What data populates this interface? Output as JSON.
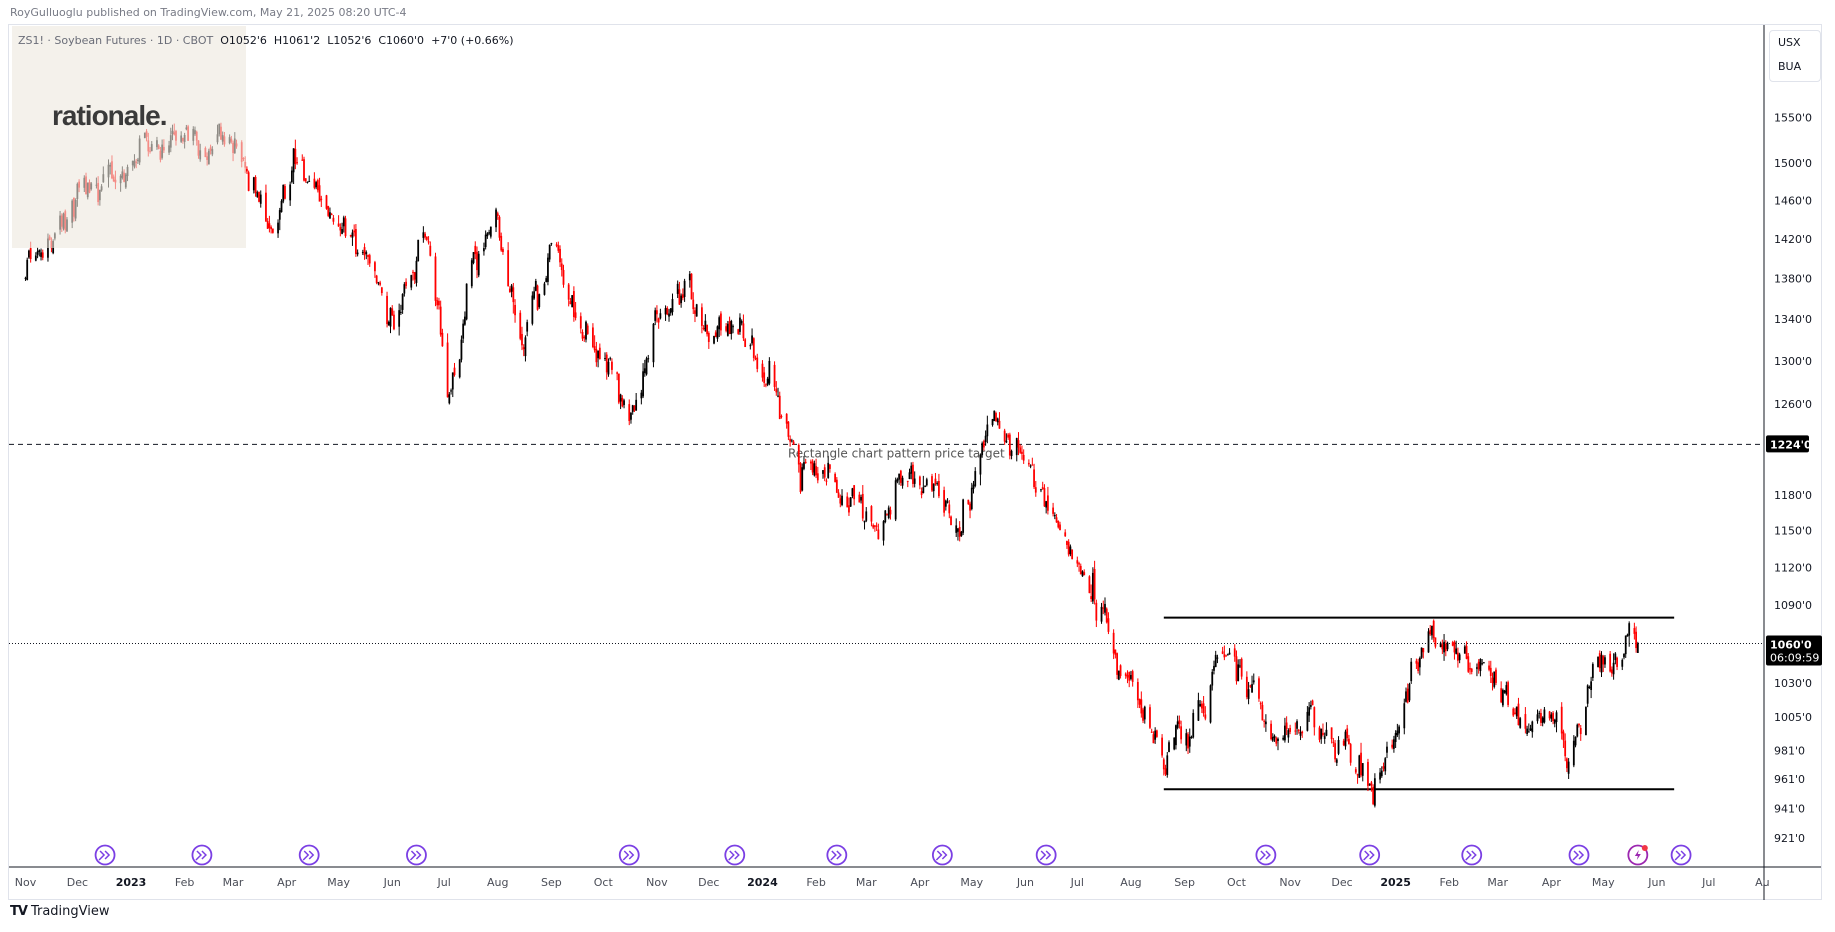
{
  "header": {
    "published": "RoyGulluoglu published on TradingView.com, May 21, 2025 08:20 UTC-4"
  },
  "legend": {
    "symbol": "ZS1! · Soybean Futures · 1D · CBOT",
    "open": "O1052'6",
    "high": "H1061'2",
    "low": "L1052'6",
    "close": "C1060'0",
    "change": "+7'0 (+0.66%)"
  },
  "logo": {
    "text": "rationale."
  },
  "units": {
    "line1": "USX",
    "line2": "BUA"
  },
  "footer": {
    "brand": "TradingView",
    "mark": "TV"
  },
  "colors": {
    "up": "#000000",
    "down": "#ff0000",
    "event": "#7b3fe4",
    "axis": "#787b86"
  },
  "chart_data": {
    "type": "candlestick",
    "title": "ZS1! Soybean Futures 1D CBOT",
    "scale": "log",
    "ylim": [
      905,
      1600
    ],
    "xlim": [
      "2022-10-27",
      "2025-08-05"
    ],
    "path": [
      [
        "2022-11-01",
        1390
      ],
      [
        "2022-11-20",
        1430
      ],
      [
        "2022-12-10",
        1460
      ],
      [
        "2023-01-01",
        1500
      ],
      [
        "2023-01-20",
        1520
      ],
      [
        "2023-02-10",
        1540
      ],
      [
        "2023-03-01",
        1510
      ],
      [
        "2023-03-15",
        1470
      ],
      [
        "2023-03-22",
        1420
      ],
      [
        "2023-04-05",
        1510
      ],
      [
        "2023-04-18",
        1480
      ],
      [
        "2023-05-01",
        1436
      ],
      [
        "2023-05-15",
        1420
      ],
      [
        "2023-06-01",
        1323
      ],
      [
        "2023-06-20",
        1425
      ],
      [
        "2023-07-03",
        1270
      ],
      [
        "2023-07-17",
        1377
      ],
      [
        "2023-08-01",
        1429
      ],
      [
        "2023-08-15",
        1323
      ],
      [
        "2023-09-01",
        1408
      ],
      [
        "2023-09-20",
        1330
      ],
      [
        "2023-10-15",
        1262
      ],
      [
        "2023-11-01",
        1323
      ],
      [
        "2023-11-20",
        1384
      ],
      [
        "2023-12-01",
        1334
      ],
      [
        "2023-12-20",
        1328
      ],
      [
        "2024-01-05",
        1274
      ],
      [
        "2024-01-25",
        1208
      ],
      [
        "2024-02-20",
        1178
      ],
      [
        "2024-03-05",
        1142
      ],
      [
        "2024-03-20",
        1203
      ],
      [
        "2024-04-10",
        1178
      ],
      [
        "2024-04-25",
        1157
      ],
      [
        "2024-05-12",
        1243
      ],
      [
        "2024-05-25",
        1233
      ],
      [
        "2024-06-10",
        1178
      ],
      [
        "2024-06-25",
        1142
      ],
      [
        "2024-07-10",
        1104
      ],
      [
        "2024-07-25",
        1050
      ],
      [
        "2024-08-10",
        1013
      ],
      [
        "2024-08-20",
        965
      ],
      [
        "2024-09-05",
        1005
      ],
      [
        "2024-09-25",
        1062
      ],
      [
        "2024-10-15",
        1005
      ],
      [
        "2024-11-01",
        995
      ],
      [
        "2024-11-15",
        1013
      ],
      [
        "2024-12-01",
        990
      ],
      [
        "2024-12-20",
        957
      ],
      [
        "2025-01-05",
        1000
      ],
      [
        "2025-01-20",
        1065
      ],
      [
        "2025-02-05",
        1050
      ],
      [
        "2025-02-25",
        1040
      ],
      [
        "2025-03-15",
        1003
      ],
      [
        "2025-04-01",
        1013
      ],
      [
        "2025-04-10",
        974
      ],
      [
        "2025-04-25",
        1035
      ],
      [
        "2025-05-10",
        1043
      ],
      [
        "2025-05-15",
        1072
      ],
      [
        "2025-05-21",
        1060
      ]
    ],
    "last_candle": {
      "date": "2025-05-21",
      "open": 1052.75,
      "high": 1061.25,
      "low": 1052.75,
      "close": 1060
    },
    "price_ticks": [
      {
        "value": 1550,
        "label": "1550'0"
      },
      {
        "value": 1500,
        "label": "1500'0"
      },
      {
        "value": 1460,
        "label": "1460'0"
      },
      {
        "value": 1420,
        "label": "1420'0"
      },
      {
        "value": 1380,
        "label": "1380'0"
      },
      {
        "value": 1340,
        "label": "1340'0"
      },
      {
        "value": 1300,
        "label": "1300'0"
      },
      {
        "value": 1260,
        "label": "1260'0"
      },
      {
        "value": 1180,
        "label": "1180'0"
      },
      {
        "value": 1150,
        "label": "1150'0"
      },
      {
        "value": 1120,
        "label": "1120'0"
      },
      {
        "value": 1090,
        "label": "1090'0"
      },
      {
        "value": 1030,
        "label": "1030'0"
      },
      {
        "value": 1005,
        "label": "1005'0"
      },
      {
        "value": 981,
        "label": "981'0"
      },
      {
        "value": 961,
        "label": "961'0"
      },
      {
        "value": 941,
        "label": "941'0"
      },
      {
        "value": 921,
        "label": "921'0"
      }
    ],
    "time_ticks": [
      {
        "date": "2022-11-01",
        "label": "Nov"
      },
      {
        "date": "2022-12-01",
        "label": "Dec"
      },
      {
        "date": "2023-01-01",
        "label": "2023",
        "bold": true
      },
      {
        "date": "2023-02-01",
        "label": "Feb"
      },
      {
        "date": "2023-03-01",
        "label": "Mar"
      },
      {
        "date": "2023-04-01",
        "label": "Apr"
      },
      {
        "date": "2023-05-01",
        "label": "May"
      },
      {
        "date": "2023-06-01",
        "label": "Jun"
      },
      {
        "date": "2023-07-01",
        "label": "Jul"
      },
      {
        "date": "2023-08-01",
        "label": "Aug"
      },
      {
        "date": "2023-09-01",
        "label": "Sep"
      },
      {
        "date": "2023-10-01",
        "label": "Oct"
      },
      {
        "date": "2023-11-01",
        "label": "Nov"
      },
      {
        "date": "2023-12-01",
        "label": "Dec"
      },
      {
        "date": "2024-01-01",
        "label": "2024",
        "bold": true
      },
      {
        "date": "2024-02-01",
        "label": "Feb"
      },
      {
        "date": "2024-03-01",
        "label": "Mar"
      },
      {
        "date": "2024-04-01",
        "label": "Apr"
      },
      {
        "date": "2024-05-01",
        "label": "May"
      },
      {
        "date": "2024-06-01",
        "label": "Jun"
      },
      {
        "date": "2024-07-01",
        "label": "Jul"
      },
      {
        "date": "2024-08-01",
        "label": "Aug"
      },
      {
        "date": "2024-09-01",
        "label": "Sep"
      },
      {
        "date": "2024-10-01",
        "label": "Oct"
      },
      {
        "date": "2024-11-01",
        "label": "Nov"
      },
      {
        "date": "2024-12-01",
        "label": "Dec"
      },
      {
        "date": "2025-01-01",
        "label": "2025",
        "bold": true
      },
      {
        "date": "2025-02-01",
        "label": "Feb"
      },
      {
        "date": "2025-03-01",
        "label": "Mar"
      },
      {
        "date": "2025-04-01",
        "label": "Apr"
      },
      {
        "date": "2025-05-01",
        "label": "May"
      },
      {
        "date": "2025-06-01",
        "label": "Jun"
      },
      {
        "date": "2025-07-01",
        "label": "Jul"
      },
      {
        "date": "2025-08-01",
        "label": "Au"
      }
    ],
    "target_line": {
      "value": 1224,
      "label": "1224'0",
      "text": "Rectangle chart pattern price target"
    },
    "current_price": {
      "value": 1060,
      "label": "1060'0",
      "countdown": "06:09:59"
    },
    "rectangle": {
      "top": 1080,
      "bottom": 954,
      "start": "2024-08-20",
      "end": "2025-06-11"
    },
    "events": [
      {
        "date": "2022-12-17",
        "kind": "roll"
      },
      {
        "date": "2023-02-11",
        "kind": "roll"
      },
      {
        "date": "2023-04-14",
        "kind": "roll"
      },
      {
        "date": "2023-06-15",
        "kind": "roll"
      },
      {
        "date": "2023-10-16",
        "kind": "roll"
      },
      {
        "date": "2023-12-16",
        "kind": "roll"
      },
      {
        "date": "2024-02-13",
        "kind": "roll"
      },
      {
        "date": "2024-04-14",
        "kind": "roll"
      },
      {
        "date": "2024-06-13",
        "kind": "roll"
      },
      {
        "date": "2024-10-18",
        "kind": "roll"
      },
      {
        "date": "2024-12-17",
        "kind": "roll"
      },
      {
        "date": "2025-02-14",
        "kind": "roll"
      },
      {
        "date": "2025-04-17",
        "kind": "roll"
      },
      {
        "date": "2025-05-21",
        "kind": "lightning"
      },
      {
        "date": "2025-06-15",
        "kind": "roll"
      }
    ]
  }
}
